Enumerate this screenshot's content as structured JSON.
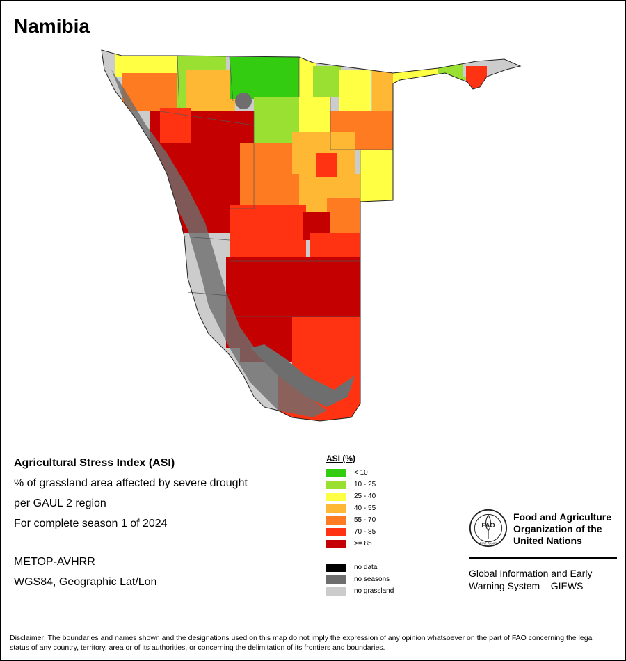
{
  "map_title": "Namibia",
  "info": {
    "line1": "Agricultural Stress Index (ASI)",
    "line2": "% of grassland area affected by severe drought",
    "line3": "per GAUL 2 region",
    "line4": "For complete season 1 of 2024",
    "line5": "METOP-AVHRR",
    "line6": "WGS84, Geographic Lat/Lon"
  },
  "legend": {
    "title": "ASI (%)",
    "classes": [
      {
        "label": "< 10",
        "color": "#33cc11"
      },
      {
        "label": "10 - 25",
        "color": "#99e033"
      },
      {
        "label": "25 - 40",
        "color": "#ffff44"
      },
      {
        "label": "40 - 55",
        "color": "#ffb833"
      },
      {
        "label": "55 - 70",
        "color": "#ff7b22"
      },
      {
        "label": "70 - 85",
        "color": "#ff3311"
      },
      {
        "label": ">= 85",
        "color": "#c40000"
      }
    ],
    "other": [
      {
        "label": "no data",
        "color": "#000000"
      },
      {
        "label": "no seasons",
        "color": "#6e6e6e"
      },
      {
        "label": "no grassland",
        "color": "#cccccc"
      }
    ]
  },
  "logo": {
    "letters": "FAO",
    "motto": "FIAT PANIS"
  },
  "org": {
    "line1": "Food and Agriculture",
    "line2": "Organization of the",
    "line3": "United Nations"
  },
  "giews": {
    "line1": "Global Information and Early",
    "line2": "Warning System – GIEWS"
  },
  "disclaimer": "Disclaimer: The boundaries and names shown and the designations used on this map do not imply the expression of any opinion whatsoever on the part of FAO concerning the legal status of any country, territory, area or of its authorities, or concerning the delimitation of its frontiers and boundaries."
}
